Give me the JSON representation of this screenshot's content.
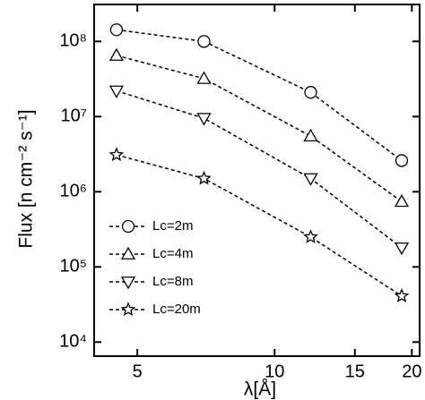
{
  "chart_data": {
    "type": "line",
    "x_label": "λ[Å]",
    "y_label": "Flux [n cm⁻² s⁻¹]",
    "x": [
      4.5,
      7,
      12,
      19
    ],
    "log_x": true,
    "log_y": true,
    "xlim": [
      4.02,
      20.8
    ],
    "ylim": [
      6500,
      310000000
    ],
    "xticks": [
      5,
      10,
      15,
      20
    ],
    "yticks": [
      {
        "value": 10000,
        "label": "10⁴"
      },
      {
        "value": 100000,
        "label": "10⁵"
      },
      {
        "value": 1000000,
        "label": "10⁶"
      },
      {
        "value": 10000000,
        "label": "10⁷"
      },
      {
        "value": 100000000,
        "label": "10⁸"
      }
    ],
    "legend": "lower left",
    "series": [
      {
        "name": "Lc=2m",
        "color": "#000000",
        "marker": "circle",
        "values": [
          143000000,
          100000000,
          21000000,
          2600000
        ]
      },
      {
        "name": "Lc=4m",
        "color": "#000000",
        "marker": "triangle-up",
        "values": [
          65000000,
          32000000,
          5500000,
          740000
        ]
      },
      {
        "name": "Lc=8m",
        "color": "#000000",
        "marker": "triangle-down",
        "values": [
          22000000,
          9500000,
          1500000,
          180000
        ]
      },
      {
        "name": "Lc=20m",
        "color": "#000000",
        "marker": "star",
        "values": [
          3100000,
          1500000,
          250000,
          41000
        ]
      }
    ]
  }
}
